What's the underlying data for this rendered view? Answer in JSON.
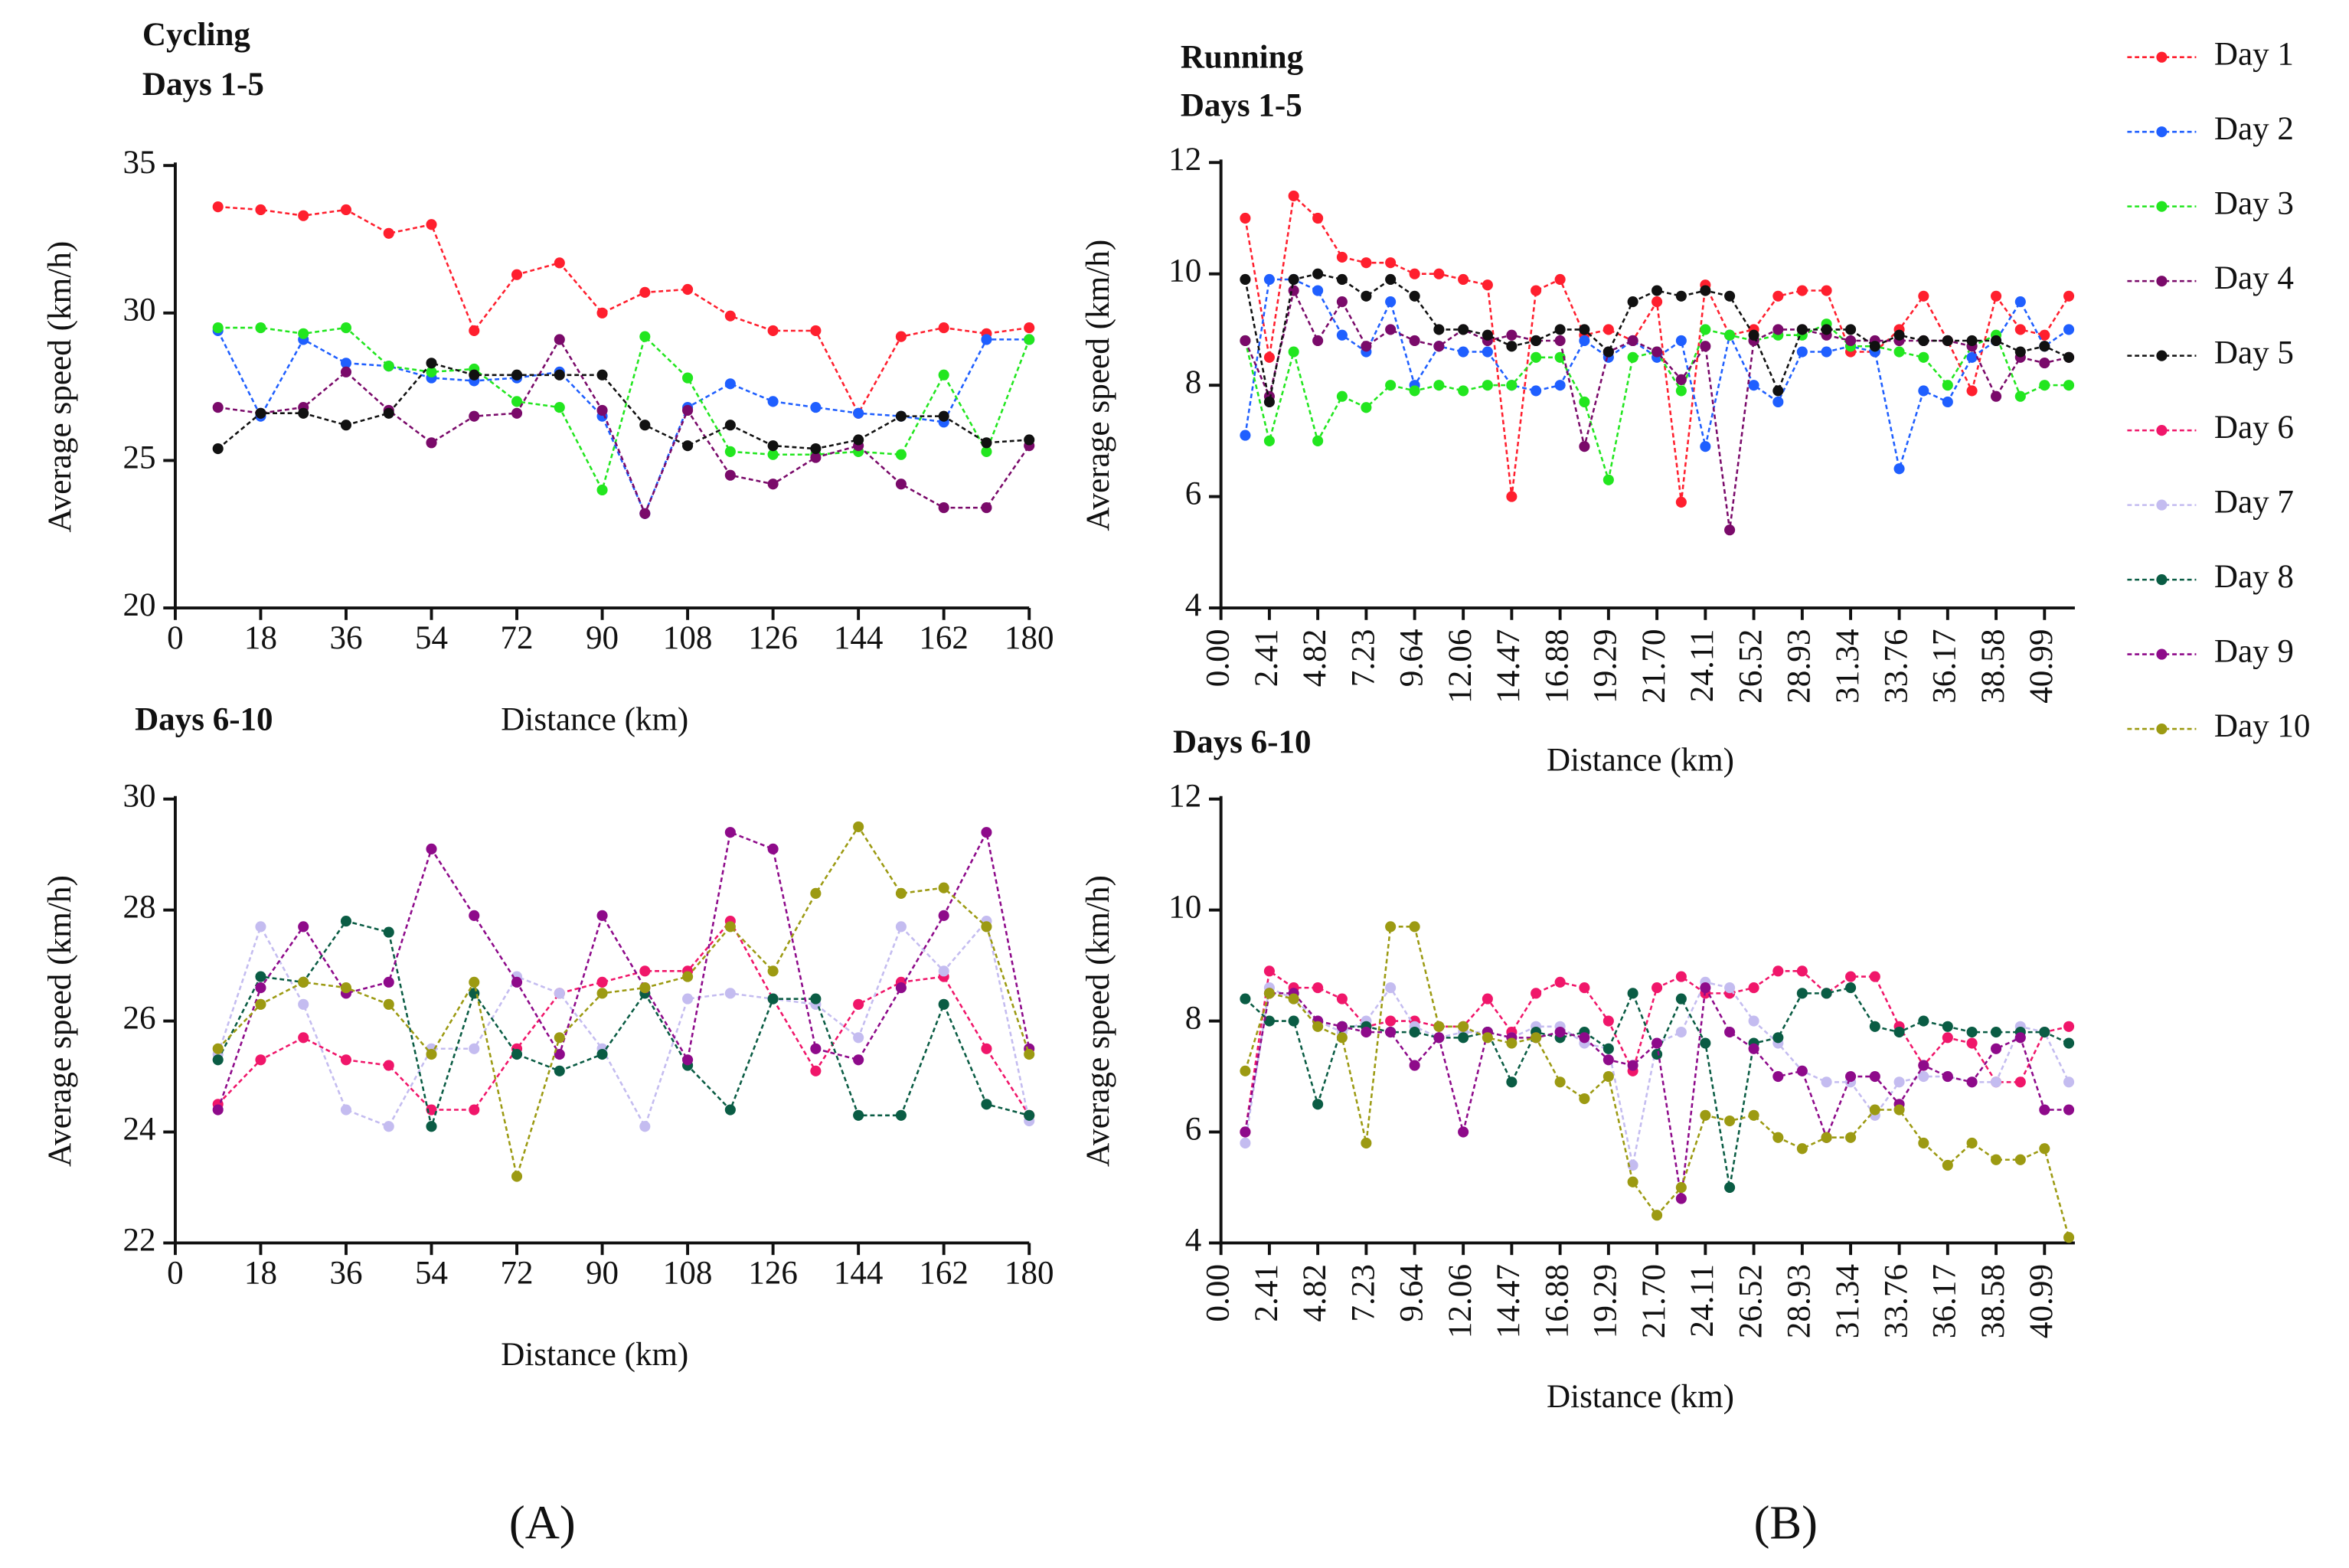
{
  "chart_data": [
    {
      "type": "line",
      "title": "Cycling",
      "subtitle": "Days 1-5",
      "x_label": "Distance (km)",
      "y_label": "Average speed (km/h)",
      "x": [
        9,
        18,
        27,
        36,
        45,
        54,
        63,
        72,
        81,
        90,
        99,
        108,
        117,
        126,
        135,
        144,
        153,
        162,
        171,
        180
      ],
      "xlim": [
        0,
        180
      ],
      "xticks": [
        0,
        18,
        36,
        54,
        72,
        90,
        108,
        126,
        144,
        162,
        180
      ],
      "ylim": [
        20,
        35
      ],
      "yticks": [
        20,
        25,
        30,
        35
      ],
      "series": [
        {
          "name": "Day 1",
          "color": "#ff1f2e",
          "values": [
            33.6,
            33.5,
            33.3,
            33.5,
            32.7,
            33.0,
            29.4,
            31.3,
            31.7,
            30.0,
            30.7,
            30.8,
            29.9,
            29.4,
            29.4,
            26.6,
            29.2,
            29.5,
            29.3,
            29.5
          ]
        },
        {
          "name": "Day 2",
          "color": "#1f5fff",
          "values": [
            29.4,
            26.5,
            29.1,
            28.3,
            28.2,
            27.8,
            27.7,
            27.8,
            28.0,
            26.5,
            23.2,
            26.8,
            27.6,
            27.0,
            26.8,
            26.6,
            26.5,
            26.3,
            29.1,
            29.1
          ]
        },
        {
          "name": "Day 3",
          "color": "#22e61f",
          "values": [
            29.5,
            29.5,
            29.3,
            29.5,
            28.2,
            28.0,
            28.1,
            27.0,
            26.8,
            24.0,
            29.2,
            27.8,
            25.3,
            25.2,
            25.2,
            25.3,
            25.2,
            27.9,
            25.3,
            29.1
          ]
        },
        {
          "name": "Day 4",
          "color": "#7a0a6a",
          "values": [
            26.8,
            26.6,
            26.8,
            28.0,
            26.7,
            25.6,
            26.5,
            26.6,
            29.1,
            26.7,
            23.2,
            26.7,
            24.5,
            24.2,
            25.1,
            25.5,
            24.2,
            23.4,
            23.4,
            25.5
          ]
        },
        {
          "name": "Day 5",
          "color": "#111111",
          "values": [
            25.4,
            26.6,
            26.6,
            26.2,
            26.6,
            28.3,
            27.9,
            27.9,
            27.9,
            27.9,
            26.2,
            25.5,
            26.2,
            25.5,
            25.4,
            25.7,
            26.5,
            26.5,
            25.6,
            25.7
          ]
        }
      ]
    },
    {
      "type": "line",
      "title": "Days 6-10",
      "x_label": "Distance (km)",
      "y_label": "Average speed (km/h)",
      "x": [
        9,
        18,
        27,
        36,
        45,
        54,
        63,
        72,
        81,
        90,
        99,
        108,
        117,
        126,
        135,
        144,
        153,
        162,
        171,
        180
      ],
      "xlim": [
        0,
        180
      ],
      "xticks": [
        0,
        18,
        36,
        54,
        72,
        90,
        108,
        126,
        144,
        162,
        180
      ],
      "ylim": [
        22,
        30
      ],
      "yticks": [
        22,
        24,
        26,
        28,
        30
      ],
      "series": [
        {
          "name": "Day 6",
          "color": "#f0166a",
          "values": [
            24.5,
            25.3,
            25.7,
            25.3,
            25.2,
            24.4,
            24.4,
            25.5,
            26.5,
            26.7,
            26.9,
            26.9,
            27.8,
            26.4,
            25.1,
            26.3,
            26.7,
            26.8,
            25.5,
            24.3
          ]
        },
        {
          "name": "Day 7",
          "color": "#c4bcf0",
          "values": [
            25.4,
            27.7,
            26.3,
            24.4,
            24.1,
            25.5,
            25.5,
            26.8,
            26.5,
            25.5,
            24.1,
            26.4,
            26.5,
            26.4,
            26.3,
            25.7,
            27.7,
            26.9,
            27.8,
            24.2
          ]
        },
        {
          "name": "Day 8",
          "color": "#0a5c44",
          "values": [
            25.3,
            26.8,
            26.7,
            27.8,
            27.6,
            24.1,
            26.5,
            25.4,
            25.1,
            25.4,
            26.5,
            25.2,
            24.4,
            26.4,
            26.4,
            24.3,
            24.3,
            26.3,
            24.5,
            24.3
          ]
        },
        {
          "name": "Day 9",
          "color": "#8e0a8a",
          "values": [
            24.4,
            26.6,
            27.7,
            26.5,
            26.7,
            29.1,
            27.9,
            26.7,
            25.4,
            27.9,
            26.6,
            25.3,
            29.4,
            29.1,
            25.5,
            25.3,
            26.6,
            27.9,
            29.4,
            25.5
          ]
        },
        {
          "name": "Day 10",
          "color": "#9c9a12",
          "values": [
            25.5,
            26.3,
            26.7,
            26.6,
            26.3,
            25.4,
            26.7,
            23.2,
            25.7,
            26.5,
            26.6,
            26.8,
            27.7,
            26.9,
            28.3,
            29.5,
            28.3,
            28.4,
            27.7,
            25.4
          ]
        }
      ]
    },
    {
      "type": "line",
      "title": "Running",
      "subtitle": "Days 1-5",
      "x_label": "Distance (km)",
      "y_label": "Average speed (km/h)",
      "x": [
        1.21,
        2.41,
        3.62,
        4.82,
        6.03,
        7.23,
        8.44,
        9.64,
        10.85,
        12.06,
        13.27,
        14.47,
        15.68,
        16.88,
        18.09,
        19.29,
        20.5,
        21.7,
        22.91,
        24.11,
        25.32,
        26.52,
        27.73,
        28.93,
        30.14,
        31.34,
        32.55,
        33.76,
        34.97,
        36.17,
        37.38,
        38.58,
        39.79,
        40.99,
        42.2
      ],
      "xlim": [
        0,
        42.5
      ],
      "xticks": [
        {
          "value": 0,
          "label": "0.00"
        },
        2.41,
        4.82,
        7.23,
        9.64,
        12.06,
        14.47,
        16.88,
        19.29,
        {
          "value": 21.7,
          "label": "21.70"
        },
        24.11,
        26.52,
        28.93,
        31.34,
        33.76,
        36.17,
        38.58,
        40.99
      ],
      "ylim": [
        4,
        12
      ],
      "yticks": [
        4,
        6,
        8,
        10,
        12
      ],
      "series": [
        {
          "name": "Day 1",
          "color": "#ff1f2e",
          "values": [
            11.0,
            8.5,
            11.4,
            11.0,
            10.3,
            10.2,
            10.2,
            10.0,
            10.0,
            9.9,
            9.8,
            6.0,
            9.7,
            9.9,
            8.9,
            9.0,
            8.8,
            9.5,
            5.9,
            9.8,
            8.9,
            9.0,
            9.6,
            9.7,
            9.7,
            8.6,
            8.6,
            9.0,
            9.6,
            8.8,
            7.9,
            9.6,
            9.0,
            8.9,
            9.6
          ]
        },
        {
          "name": "Day 2",
          "color": "#1f5fff",
          "values": [
            7.1,
            9.9,
            9.9,
            9.7,
            8.9,
            8.6,
            9.5,
            8.0,
            8.7,
            8.6,
            8.6,
            8.0,
            7.9,
            8.0,
            8.8,
            8.5,
            8.8,
            8.5,
            8.8,
            6.9,
            8.9,
            8.0,
            7.7,
            8.6,
            8.6,
            8.7,
            8.6,
            6.5,
            7.9,
            7.7,
            8.5,
            8.8,
            9.5,
            8.7,
            9.0
          ]
        },
        {
          "name": "Day 3",
          "color": "#22e61f",
          "values": [
            8.8,
            7.0,
            8.6,
            7.0,
            7.8,
            7.6,
            8.0,
            7.9,
            8.0,
            7.9,
            8.0,
            8.0,
            8.5,
            8.5,
            7.7,
            6.3,
            8.5,
            8.6,
            7.9,
            9.0,
            8.9,
            8.8,
            8.9,
            8.9,
            9.1,
            8.7,
            8.7,
            8.6,
            8.5,
            8.0,
            8.7,
            8.9,
            7.8,
            8.0,
            8.0
          ]
        },
        {
          "name": "Day 4",
          "color": "#7a0a6a",
          "values": [
            8.8,
            7.8,
            9.7,
            8.8,
            9.5,
            8.7,
            9.0,
            8.8,
            8.7,
            9.0,
            8.8,
            8.9,
            8.8,
            8.8,
            6.9,
            8.6,
            8.8,
            8.6,
            8.1,
            8.7,
            5.4,
            8.8,
            9.0,
            9.0,
            8.9,
            8.8,
            8.8,
            8.8,
            8.8,
            8.8,
            8.7,
            7.8,
            8.5,
            8.4,
            8.5
          ]
        },
        {
          "name": "Day 5",
          "color": "#111111",
          "values": [
            9.9,
            7.7,
            9.9,
            10.0,
            9.9,
            9.6,
            9.9,
            9.6,
            9.0,
            9.0,
            8.9,
            8.7,
            8.8,
            9.0,
            9.0,
            8.6,
            9.5,
            9.7,
            9.6,
            9.7,
            9.6,
            8.9,
            7.9,
            9.0,
            9.0,
            9.0,
            8.7,
            8.9,
            8.8,
            8.8,
            8.8,
            8.8,
            8.6,
            8.7,
            8.5
          ]
        }
      ]
    },
    {
      "type": "line",
      "title": "Days 6-10",
      "x_label": "Distance (km)",
      "y_label": "Average speed (km/h)",
      "x": [
        1.21,
        2.41,
        3.62,
        4.82,
        6.03,
        7.23,
        8.44,
        9.64,
        10.85,
        12.06,
        13.27,
        14.47,
        15.68,
        16.88,
        18.09,
        19.29,
        20.5,
        21.7,
        22.91,
        24.11,
        25.32,
        26.52,
        27.73,
        28.93,
        30.14,
        31.34,
        32.55,
        33.76,
        34.97,
        36.17,
        37.38,
        38.58,
        39.79,
        40.99,
        42.2
      ],
      "xlim": [
        0,
        42.5
      ],
      "xticks": [
        {
          "value": 0,
          "label": "0.00"
        },
        2.41,
        4.82,
        7.23,
        9.64,
        12.06,
        14.47,
        16.88,
        19.29,
        {
          "value": 21.7,
          "label": "21.70"
        },
        24.11,
        26.52,
        28.93,
        31.34,
        33.76,
        36.17,
        38.58,
        40.99
      ],
      "ylim": [
        4,
        12
      ],
      "yticks": [
        4,
        6,
        8,
        10,
        12
      ],
      "series": [
        {
          "name": "Day 6",
          "color": "#f0166a",
          "values": [
            6.0,
            8.9,
            8.6,
            8.6,
            8.4,
            7.9,
            8.0,
            8.0,
            7.9,
            7.9,
            8.4,
            7.8,
            8.5,
            8.7,
            8.6,
            8.0,
            7.1,
            8.6,
            8.8,
            8.5,
            8.5,
            8.6,
            8.9,
            8.9,
            8.5,
            8.8,
            8.8,
            7.9,
            7.2,
            7.7,
            7.6,
            6.9,
            6.9,
            7.8,
            7.9
          ]
        },
        {
          "name": "Day 7",
          "color": "#c4bcf0",
          "values": [
            5.8,
            8.6,
            8.4,
            8.0,
            7.8,
            8.0,
            8.6,
            7.9,
            7.7,
            7.8,
            7.8,
            7.7,
            7.9,
            7.9,
            7.6,
            7.5,
            5.4,
            7.6,
            7.8,
            8.7,
            8.6,
            8.0,
            7.6,
            7.1,
            6.9,
            6.9,
            6.3,
            6.9,
            7.0,
            7.0,
            6.9,
            6.9,
            7.9,
            7.8,
            6.9
          ]
        },
        {
          "name": "Day 8",
          "color": "#0a5c44",
          "values": [
            8.4,
            8.0,
            8.0,
            6.5,
            7.9,
            7.9,
            7.8,
            7.8,
            7.7,
            7.7,
            7.8,
            6.9,
            7.8,
            7.7,
            7.8,
            7.5,
            8.5,
            7.4,
            8.4,
            7.6,
            5.0,
            7.6,
            7.7,
            8.5,
            8.5,
            8.6,
            7.9,
            7.8,
            8.0,
            7.9,
            7.8,
            7.8,
            7.8,
            7.8,
            7.6
          ]
        },
        {
          "name": "Day 9",
          "color": "#8e0a8a",
          "values": [
            6.0,
            8.5,
            8.5,
            8.0,
            7.9,
            7.8,
            7.8,
            7.2,
            7.7,
            6.0,
            7.8,
            7.7,
            7.7,
            7.8,
            7.7,
            7.3,
            7.2,
            7.6,
            4.8,
            8.6,
            7.8,
            7.5,
            7.0,
            7.1,
            5.9,
            7.0,
            7.0,
            6.5,
            7.2,
            7.0,
            6.9,
            7.5,
            7.7,
            6.4,
            6.4
          ]
        },
        {
          "name": "Day 10",
          "color": "#9c9a12",
          "values": [
            7.1,
            8.5,
            8.4,
            7.9,
            7.7,
            5.8,
            9.7,
            9.7,
            7.9,
            7.9,
            7.7,
            7.6,
            7.7,
            6.9,
            6.6,
            7.0,
            5.1,
            4.5,
            5.0,
            6.3,
            6.2,
            6.3,
            5.9,
            5.7,
            5.9,
            5.9,
            6.4,
            6.4,
            5.8,
            5.4,
            5.8,
            5.5,
            5.5,
            5.7,
            4.1
          ]
        }
      ]
    }
  ],
  "panel_labels": [
    "(A)",
    "(B)"
  ]
}
